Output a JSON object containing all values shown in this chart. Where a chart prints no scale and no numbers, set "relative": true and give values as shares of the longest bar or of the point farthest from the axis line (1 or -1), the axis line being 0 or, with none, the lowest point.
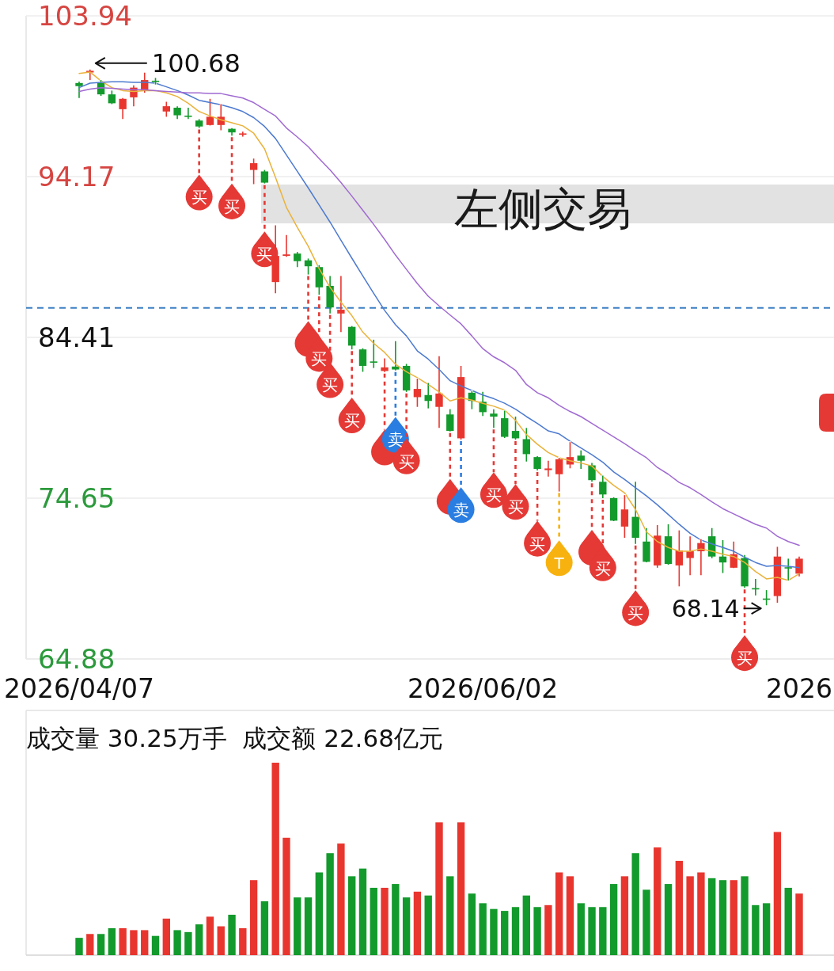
{
  "chart_data": [
    {
      "type": "candlestick",
      "categories": [
        "2026/04/07",
        null,
        null,
        null,
        null,
        null,
        null,
        null,
        null,
        null,
        null,
        null,
        null,
        null,
        null,
        null,
        null,
        null,
        null,
        null,
        null,
        null,
        null,
        null,
        null,
        null,
        null,
        null,
        null,
        null,
        null,
        null,
        null,
        null,
        null,
        null,
        null,
        "2026/06/02",
        null,
        null,
        null,
        null,
        null,
        null,
        null,
        null,
        null,
        null,
        null,
        null,
        null,
        null,
        null,
        null,
        null,
        null,
        null,
        null,
        null,
        null,
        null,
        null,
        null,
        null,
        null,
        null,
        "2026"
      ],
      "ohlc": [
        [
          99.86,
          99.95,
          98.95,
          99.67
        ],
        [
          100.5,
          100.68,
          100.04,
          100.6
        ],
        [
          99.86,
          100.04,
          99.08,
          99.17
        ],
        [
          99.17,
          99.4,
          98.58,
          98.63
        ],
        [
          98.27,
          98.95,
          97.67,
          98.9
        ],
        [
          98.99,
          99.72,
          98.45,
          99.58
        ],
        [
          99.4,
          100.49,
          99.27,
          100.04
        ],
        [
          100.0,
          100.17,
          99.77,
          99.95
        ],
        [
          98.13,
          98.72,
          97.81,
          98.45
        ],
        [
          98.36,
          98.45,
          97.67,
          97.9
        ],
        [
          97.88,
          98.36,
          97.67,
          97.83
        ],
        [
          97.58,
          97.67,
          97.13,
          97.22
        ],
        [
          97.31,
          98.9,
          97.28,
          97.81
        ],
        [
          97.31,
          98.58,
          96.99,
          97.81
        ],
        [
          97.08,
          97.12,
          96.67,
          96.86
        ],
        [
          96.72,
          96.9,
          96.6,
          96.8
        ],
        [
          94.58,
          95.27,
          93.72,
          94.99
        ],
        [
          94.49,
          94.58,
          93.76,
          93.81
        ],
        [
          87.77,
          91.22,
          87.09,
          89.36
        ],
        [
          89.36,
          90.63,
          89.3,
          89.45
        ],
        [
          89.5,
          89.6,
          88.68,
          89.04
        ],
        [
          89.09,
          89.2,
          88.23,
          88.73
        ],
        [
          88.68,
          88.8,
          87.0,
          87.45
        ],
        [
          87.54,
          88.14,
          85.86,
          86.23
        ],
        [
          85.86,
          88.14,
          84.73,
          86.09
        ],
        [
          85.05,
          85.1,
          83.68,
          83.91
        ],
        [
          83.68,
          83.75,
          82.32,
          82.68
        ],
        [
          82.95,
          84.27,
          82.55,
          82.9
        ],
        [
          82.37,
          83.14,
          82.3,
          82.59
        ],
        [
          82.64,
          84.18,
          82.4,
          82.46
        ],
        [
          82.68,
          82.8,
          81.1,
          81.19
        ],
        [
          80.78,
          81.91,
          80.19,
          81.28
        ],
        [
          80.91,
          81.64,
          80.1,
          80.55
        ],
        [
          80.19,
          83.27,
          78.91,
          81.0
        ],
        [
          79.73,
          80.05,
          78.7,
          78.73
        ],
        [
          78.28,
          82.68,
          78.2,
          82.0
        ],
        [
          81.05,
          81.15,
          80.05,
          80.55
        ],
        [
          80.5,
          81.1,
          79.64,
          79.87
        ],
        [
          79.78,
          80.05,
          78.91,
          79.6
        ],
        [
          79.5,
          79.96,
          78.3,
          78.37
        ],
        [
          78.73,
          79.6,
          78.2,
          78.28
        ],
        [
          78.23,
          78.91,
          76.87,
          77.32
        ],
        [
          77.14,
          77.2,
          76.33,
          76.42
        ],
        [
          76.35,
          76.92,
          75.96,
          76.45
        ],
        [
          76.1,
          77.1,
          75.05,
          77.01
        ],
        [
          76.69,
          78.05,
          76.46,
          77.14
        ],
        [
          77.23,
          77.55,
          76.42,
          76.92
        ],
        [
          76.64,
          76.78,
          75.64,
          75.74
        ],
        [
          75.64,
          76.01,
          74.65,
          74.87
        ],
        [
          74.65,
          74.7,
          73.25,
          73.28
        ],
        [
          72.92,
          74.83,
          72.24,
          73.96
        ],
        [
          73.51,
          75.64,
          71.87,
          72.24
        ],
        [
          72.01,
          72.83,
          70.75,
          70.78
        ],
        [
          70.56,
          73.01,
          70.42,
          72.37
        ],
        [
          72.33,
          73.06,
          70.6,
          70.65
        ],
        [
          70.56,
          72.69,
          69.29,
          71.47
        ],
        [
          71.01,
          72.33,
          69.97,
          71.42
        ],
        [
          71.42,
          72.15,
          69.97,
          71.92
        ],
        [
          72.33,
          72.83,
          71.0,
          71.1
        ],
        [
          71.1,
          72.1,
          70.1,
          70.74
        ],
        [
          70.42,
          72.01,
          70.4,
          71.24
        ],
        [
          71.01,
          71.19,
          69.2,
          69.29
        ],
        [
          69.18,
          69.74,
          68.74,
          69.12
        ],
        [
          68.55,
          69.06,
          68.14,
          68.5
        ],
        [
          68.7,
          71.69,
          68.29,
          71.1
        ],
        [
          70.45,
          70.97,
          69.65,
          70.38
        ],
        [
          70.06,
          71.1,
          69.9,
          70.97
        ]
      ],
      "colors": [
        "#139a2c",
        "#e8362f",
        "#139a2c",
        "#139a2c",
        "#e8362f",
        "#e8362f",
        "#e8362f",
        "#139a2c",
        "#e8362f",
        "#139a2c",
        "#139a2c",
        "#139a2c",
        "#e8362f",
        "#e8362f",
        "#139a2c",
        "#e8362f",
        "#e8362f",
        "#139a2c",
        "#e8362f",
        "#e8362f",
        "#139a2c",
        "#139a2c",
        "#139a2c",
        "#139a2c",
        "#e8362f",
        "#139a2c",
        "#139a2c",
        "#139a2c",
        "#e8362f",
        "#139a2c",
        "#139a2c",
        "#e8362f",
        "#139a2c",
        "#e8362f",
        "#139a2c",
        "#e8362f",
        "#139a2c",
        "#139a2c",
        "#139a2c",
        "#139a2c",
        "#139a2c",
        "#139a2c",
        "#139a2c",
        "#e8362f",
        "#e8362f",
        "#e8362f",
        "#139a2c",
        "#139a2c",
        "#139a2c",
        "#139a2c",
        "#e8362f",
        "#139a2c",
        "#139a2c",
        "#e8362f",
        "#139a2c",
        "#e8362f",
        "#e8362f",
        "#e8362f",
        "#139a2c",
        "#139a2c",
        "#e8362f",
        "#139a2c",
        "#139a2c",
        "#139a2c",
        "#e8362f",
        "#139a2c",
        "#e8362f"
      ],
      "series": [
        {
          "type": "line",
          "color": "#eab23a",
          "values": [
            100.44,
            100.53,
            99.99,
            99.58,
            99.4,
            99.35,
            99.4,
            99.4,
            99.26,
            99.04,
            98.63,
            98.13,
            97.86,
            97.63,
            97.45,
            97.26,
            96.81,
            95.86,
            94.13,
            92.31,
            91.09,
            89.95,
            88.59,
            87.45,
            86.55,
            85.73,
            84.73,
            84.05,
            83.5,
            82.78,
            82.32,
            81.96,
            81.55,
            81.1,
            80.55,
            80.74,
            80.6,
            80.41,
            80.23,
            80.0,
            79.37,
            78.51,
            77.92,
            77.42,
            77.1,
            76.92,
            76.78,
            76.6,
            75.96,
            75.42,
            74.96,
            73.96,
            72.6,
            72.01,
            71.65,
            71.42,
            71.42,
            71.56,
            71.42,
            71.24,
            71.1,
            70.74,
            70.19,
            69.74,
            69.83,
            69.65,
            70.06
          ]
        },
        {
          "type": "line",
          "color": "#4d7ad0",
          "values": [
            99.58,
            99.85,
            99.9,
            99.94,
            99.94,
            99.9,
            99.9,
            99.85,
            99.63,
            99.4,
            99.13,
            98.81,
            98.67,
            98.54,
            98.36,
            98.13,
            97.76,
            97.22,
            96.49,
            95.49,
            94.49,
            93.49,
            92.45,
            91.41,
            90.31,
            89.22,
            88.14,
            87.09,
            86.05,
            85.18,
            84.5,
            83.59,
            83.09,
            82.46,
            81.78,
            81.46,
            81.19,
            80.91,
            80.69,
            80.41,
            80.05,
            79.6,
            79.19,
            78.73,
            78.55,
            78.1,
            77.69,
            77.28,
            76.83,
            76.24,
            75.78,
            75.28,
            74.78,
            74.24,
            73.65,
            73.06,
            72.51,
            72.1,
            71.87,
            71.65,
            71.42,
            71.06,
            70.74,
            70.51,
            70.56,
            70.51,
            70.42
          ]
        },
        {
          "type": "line",
          "color": "#a06ad2",
          "values": [
            99.35,
            99.49,
            99.58,
            99.54,
            99.49,
            99.45,
            99.45,
            99.4,
            99.35,
            99.31,
            99.26,
            99.26,
            99.22,
            99.22,
            99.08,
            98.95,
            98.67,
            98.26,
            97.86,
            97.13,
            96.58,
            95.99,
            95.27,
            94.58,
            93.81,
            92.99,
            92.13,
            91.27,
            90.36,
            89.41,
            88.54,
            87.68,
            86.91,
            86.32,
            85.77,
            85.23,
            84.5,
            83.73,
            83.23,
            82.87,
            82.41,
            81.55,
            81.05,
            80.74,
            80.28,
            79.91,
            79.6,
            79.19,
            78.78,
            78.37,
            77.96,
            77.51,
            77.1,
            76.51,
            76.1,
            75.6,
            75.28,
            74.87,
            74.42,
            74.01,
            73.69,
            73.37,
            73.06,
            72.83,
            72.33,
            72.01,
            71.78
          ]
        },
        {
          "type": "scatter",
          "marker": "circle",
          "values": [
            null,
            null,
            null,
            null,
            null,
            null,
            null,
            null,
            null,
            null,
            null,
            92.95,
            null,
            null,
            92.4,
            null,
            null,
            89.5,
            null,
            null,
            null,
            84.05,
            83.14,
            81.55,
            null,
            79.41,
            null,
            null,
            77.46,
            78.23,
            76.92,
            null,
            null,
            null,
            74.46,
            73.96,
            null,
            null,
            74.87,
            null,
            74.15,
            null,
            71.92,
            null,
            70.74,
            null,
            null,
            71.37,
            70.42,
            null,
            null,
            67.7,
            null,
            null,
            null,
            null,
            null,
            null,
            null,
            null,
            null,
            64.97,
            null,
            null,
            null,
            null,
            null
          ],
          "value_labels": [
            null,
            null,
            null,
            null,
            null,
            null,
            null,
            null,
            null,
            null,
            null,
            "买",
            null,
            null,
            "买",
            null,
            null,
            "买",
            null,
            null,
            null,
            null,
            "买",
            "买",
            null,
            "买",
            null,
            null,
            null,
            "卖",
            "买",
            null,
            null,
            null,
            null,
            "卖",
            null,
            null,
            "买",
            null,
            "买",
            null,
            "买",
            null,
            "T",
            null,
            null,
            null,
            "买",
            null,
            null,
            "买",
            null,
            null,
            null,
            null,
            null,
            null,
            null,
            null,
            null,
            "买",
            null,
            null,
            null,
            null,
            null
          ],
          "colors": [
            null,
            null,
            null,
            null,
            null,
            null,
            null,
            null,
            null,
            null,
            null,
            "#e53935",
            null,
            null,
            "#e53935",
            null,
            null,
            "#e53935",
            null,
            null,
            null,
            "#e53935",
            "#e53935",
            "#e53935",
            null,
            "#e53935",
            null,
            null,
            "#e53935",
            "#2a7de1",
            "#e53935",
            null,
            null,
            null,
            "#e53935",
            "#2a7de1",
            null,
            null,
            "#e53935",
            null,
            "#e53935",
            null,
            "#e53935",
            null,
            "#f7b20f",
            null,
            null,
            "#e53935",
            "#e53935",
            null,
            null,
            "#e53935",
            null,
            null,
            null,
            null,
            null,
            null,
            null,
            null,
            null,
            "#e53935",
            null,
            null,
            null,
            null,
            null
          ]
        }
      ],
      "ylim": [
        64.88,
        103.94
      ],
      "yticks": [
        103.94,
        94.17,
        84.41,
        74.65,
        64.88
      ],
      "grid": "y",
      "ref_lines": [
        {
          "axis": "y",
          "value": 86.2,
          "color": "#3b7fc4",
          "line_style": "dashed"
        }
      ],
      "annotations": [
        "左侧交易",
        "100.68",
        "68.14"
      ]
    },
    {
      "type": "bar",
      "title": "成交量 30.25万手  成交额 22.68亿元",
      "relative": true,
      "categories": [
        null,
        null,
        null,
        null,
        null,
        null,
        null,
        null,
        null,
        null,
        null,
        null,
        null,
        null,
        null,
        null,
        null,
        null,
        null,
        null,
        null,
        null,
        null,
        null,
        null,
        null,
        null,
        null,
        null,
        null,
        null,
        null,
        null,
        null,
        null,
        null,
        null,
        null,
        null,
        null,
        null,
        null,
        null,
        null,
        null,
        null,
        null,
        null,
        null,
        null,
        null,
        null,
        null,
        null,
        null,
        null,
        null,
        null,
        null,
        null,
        null,
        null,
        null,
        null,
        null,
        null,
        null
      ],
      "values": [
        0.09,
        0.11,
        0.11,
        0.14,
        0.14,
        0.13,
        0.13,
        0.1,
        0.19,
        0.13,
        0.12,
        0.16,
        0.2,
        0.15,
        0.21,
        0.14,
        0.39,
        0.28,
        1,
        0.61,
        0.3,
        0.3,
        0.43,
        0.53,
        0.58,
        0.41,
        0.45,
        0.35,
        0.35,
        0.37,
        0.3,
        0.33,
        0.31,
        0.69,
        0.41,
        0.69,
        0.32,
        0.27,
        0.24,
        0.23,
        0.25,
        0.31,
        0.25,
        0.26,
        0.43,
        0.41,
        0.27,
        0.25,
        0.25,
        0.37,
        0.41,
        0.53,
        0.34,
        0.56,
        0.37,
        0.49,
        0.41,
        0.43,
        0.4,
        0.39,
        0.39,
        0.41,
        0.26,
        0.27,
        0.64,
        0.35,
        0.32
      ],
      "colors": [
        "#139a2c",
        "#e8362f",
        "#139a2c",
        "#139a2c",
        "#e8362f",
        "#e8362f",
        "#e8362f",
        "#139a2c",
        "#e8362f",
        "#139a2c",
        "#139a2c",
        "#139a2c",
        "#e8362f",
        "#e8362f",
        "#139a2c",
        "#e8362f",
        "#e8362f",
        "#139a2c",
        "#e8362f",
        "#e8362f",
        "#139a2c",
        "#139a2c",
        "#139a2c",
        "#139a2c",
        "#e8362f",
        "#139a2c",
        "#139a2c",
        "#139a2c",
        "#e8362f",
        "#139a2c",
        "#139a2c",
        "#e8362f",
        "#139a2c",
        "#e8362f",
        "#139a2c",
        "#e8362f",
        "#139a2c",
        "#139a2c",
        "#139a2c",
        "#139a2c",
        "#139a2c",
        "#139a2c",
        "#139a2c",
        "#e8362f",
        "#e8362f",
        "#e8362f",
        "#139a2c",
        "#139a2c",
        "#139a2c",
        "#139a2c",
        "#e8362f",
        "#139a2c",
        "#139a2c",
        "#e8362f",
        "#139a2c",
        "#e8362f",
        "#e8362f",
        "#e8362f",
        "#139a2c",
        "#139a2c",
        "#e8362f",
        "#139a2c",
        "#139a2c",
        "#139a2c",
        "#e8362f",
        "#139a2c",
        "#e8362f"
      ]
    }
  ]
}
